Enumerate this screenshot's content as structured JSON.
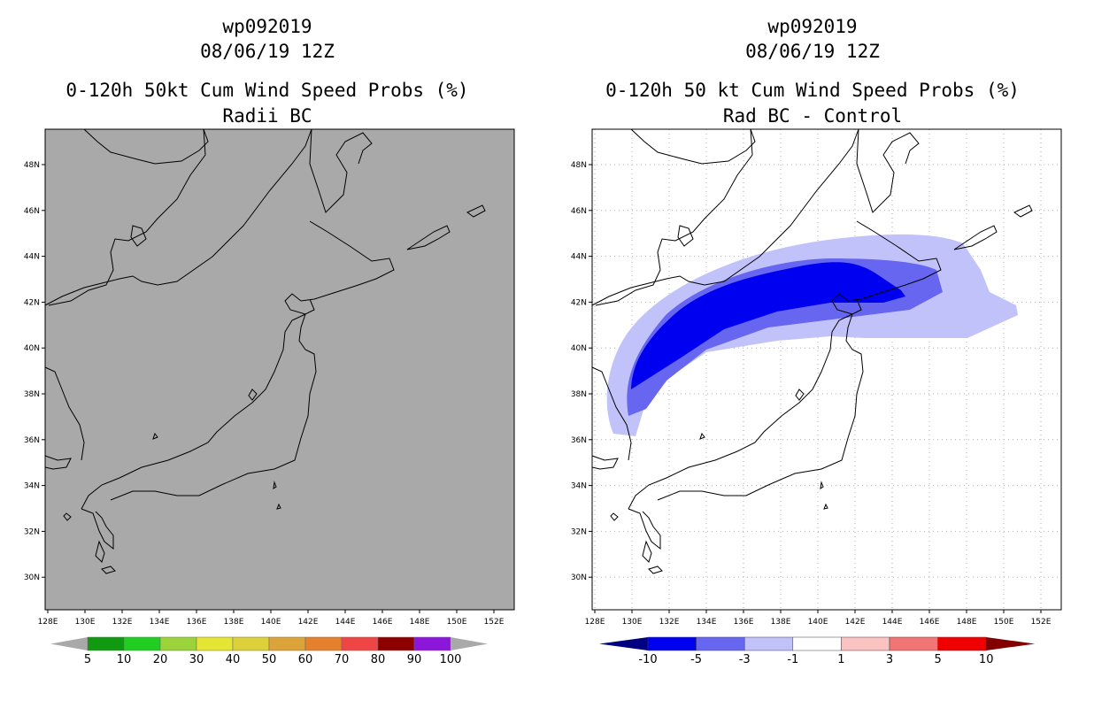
{
  "left_panel": {
    "storm_id": "wp092019",
    "datetime": "08/06/19 12Z",
    "title": "0-120h 50kt Cum Wind Speed Probs (%)",
    "subtitle": "Radii BC",
    "background_color": "#a9a9a9",
    "colorbar": {
      "labels": [
        "5",
        "10",
        "20",
        "30",
        "40",
        "50",
        "60",
        "70",
        "80",
        "90",
        "100"
      ],
      "colors": [
        "#a9a9a9",
        "#119a11",
        "#22cd22",
        "#9ad33a",
        "#e5e533",
        "#dcd13a",
        "#dca33a",
        "#e5802e",
        "#f04545",
        "#8e0000",
        "#8c16d9",
        "#a9a9a9"
      ]
    }
  },
  "right_panel": {
    "storm_id": "wp092019",
    "datetime": "08/06/19 12Z",
    "title": "0-120h 50 kt Cum Wind Speed Probs (%)",
    "subtitle": "Rad BC - Control",
    "colorbar": {
      "labels": [
        "-10",
        "-5",
        "-3",
        "-1",
        "1",
        "3",
        "5",
        "10"
      ],
      "colors": [
        "#000080",
        "#0000f0",
        "#6666f0",
        "#c2c2fa",
        "#ffffff",
        "#fbc2c2",
        "#f27474",
        "#f00000",
        "#820000"
      ]
    }
  },
  "axes": {
    "x_ticks": [
      "128E",
      "130E",
      "132E",
      "134E",
      "136E",
      "138E",
      "140E",
      "142E",
      "144E",
      "146E",
      "148E",
      "150E",
      "152E"
    ],
    "y_ticks": [
      "48N",
      "46N",
      "44N",
      "42N",
      "40N",
      "38N",
      "36N",
      "34N",
      "32N",
      "30N"
    ],
    "lon_range": [
      127.9,
      152.0
    ],
    "lat_range": [
      28.6,
      49.4
    ]
  }
}
